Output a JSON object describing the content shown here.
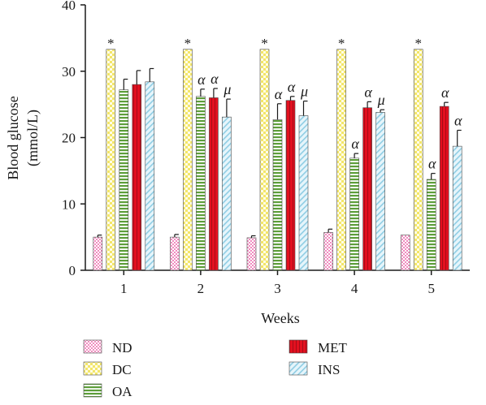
{
  "chart_data": {
    "type": "bar",
    "ylabel_line1": "Blood glucose",
    "ylabel_line2": "(mmol/L)",
    "xlabel": "Weeks",
    "categories": [
      "1",
      "2",
      "3",
      "4",
      "5"
    ],
    "ylim": [
      0,
      40
    ],
    "yticks": [
      0,
      10,
      20,
      30,
      40
    ],
    "grid": false,
    "legend_position": "bottom",
    "series": [
      {
        "name": "ND",
        "key": "nd",
        "color": "#f7c6dc",
        "pattern": "checker",
        "values": [
          5.0,
          5.0,
          4.9,
          5.7,
          5.3
        ],
        "errors": [
          0.3,
          0.4,
          0.3,
          0.5,
          0.0
        ],
        "marks": [
          "",
          "",
          "",
          "",
          ""
        ]
      },
      {
        "name": "DC",
        "key": "dc",
        "color": "#fbf5b4",
        "pattern": "checker",
        "values": [
          33.3,
          33.3,
          33.3,
          33.3,
          33.3
        ],
        "errors": [
          0,
          0,
          0,
          0,
          0
        ],
        "marks": [
          "*",
          "*",
          "*",
          "*",
          "*"
        ]
      },
      {
        "name": "OA",
        "key": "oa",
        "color": "#6fa94a",
        "pattern": "hstripes",
        "values": [
          27.2,
          26.2,
          22.7,
          16.9,
          13.7
        ],
        "errors": [
          1.6,
          1.1,
          2.4,
          0.7,
          0.9
        ],
        "marks": [
          "",
          "α",
          "α",
          "α",
          "α"
        ]
      },
      {
        "name": "MET",
        "key": "met",
        "color": "#e3101f",
        "pattern": "vstripes",
        "values": [
          28.0,
          26.0,
          25.6,
          24.5,
          24.7
        ],
        "errors": [
          2.1,
          1.4,
          0.6,
          0.9,
          0.6
        ],
        "marks": [
          "",
          "α",
          "α",
          "α",
          "α"
        ]
      },
      {
        "name": "INS",
        "key": "ins",
        "color": "#c9e7f3",
        "pattern": "diag",
        "values": [
          28.4,
          23.1,
          23.3,
          23.8,
          18.7
        ],
        "errors": [
          2.0,
          2.7,
          2.2,
          0.4,
          2.4
        ],
        "marks": [
          "",
          "μ",
          "μ",
          "μ",
          "α"
        ]
      }
    ]
  }
}
